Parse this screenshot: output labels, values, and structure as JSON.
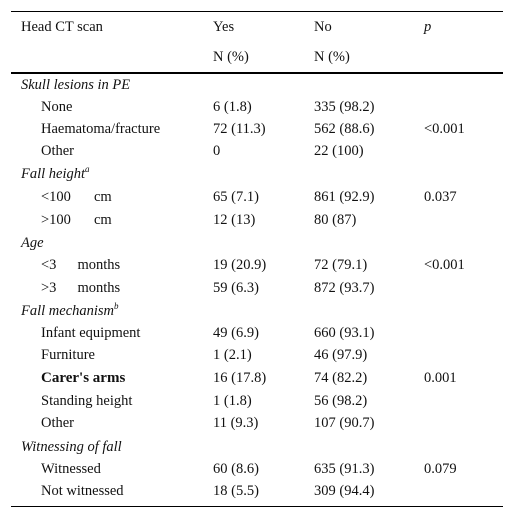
{
  "header": {
    "col0": "Head CT scan",
    "col1": "Yes",
    "col2": "No",
    "col3": "p",
    "col1_sub": "N (%)",
    "col2_sub": "N (%)"
  },
  "sections": [
    {
      "title": "Skull lesions in PE",
      "sup": ""
    },
    {
      "title": "Fall height",
      "sup": "a"
    },
    {
      "title": "Age",
      "sup": ""
    },
    {
      "title": "Fall mechanism",
      "sup": "b"
    },
    {
      "title": "Witnessing of fall",
      "sup": ""
    }
  ],
  "rows": [
    {
      "label": "None",
      "unit": "",
      "yes": "6 (1.8)",
      "no": "335 (98.2)",
      "p": ""
    },
    {
      "label": "Haematoma/fracture",
      "unit": "",
      "yes": "72 (11.3)",
      "no": "562 (88.6)",
      "p": "<0.001"
    },
    {
      "label": "Other",
      "unit": "",
      "yes": "0",
      "no": "22 (100)",
      "p": ""
    },
    {
      "label": "<100",
      "unit": "cm",
      "yes": "65 (7.1)",
      "no": "861 (92.9)",
      "p": "0.037"
    },
    {
      "label": ">100",
      "unit": "cm",
      "yes": "12 (13)",
      "no": "80 (87)",
      "p": ""
    },
    {
      "label": "<3",
      "unit": "months",
      "yes": "19 (20.9)",
      "no": "72 (79.1)",
      "p": "<0.001"
    },
    {
      "label": ">3",
      "unit": "months",
      "yes": "59 (6.3)",
      "no": "872 (93.7)",
      "p": ""
    },
    {
      "label": "Infant equipment",
      "unit": "",
      "yes": "49 (6.9)",
      "no": "660 (93.1)",
      "p": ""
    },
    {
      "label": "Furniture",
      "unit": "",
      "yes": "1 (2.1)",
      "no": "46 (97.9)",
      "p": ""
    },
    {
      "label": "Carer's arms",
      "unit": "",
      "yes": "16 (17.8)",
      "no": "74 (82.2)",
      "p": "0.001"
    },
    {
      "label": "Standing height",
      "unit": "",
      "yes": "1 (1.8)",
      "no": "56 (98.2)",
      "p": ""
    },
    {
      "label": "Other",
      "unit": "",
      "yes": "11 (9.3)",
      "no": "107 (90.7)",
      "p": ""
    },
    {
      "label": "Witnessed",
      "unit": "",
      "yes": "60 (8.6)",
      "no": "635 (91.3)",
      "p": "0.079"
    },
    {
      "label": "Not witnessed",
      "unit": "",
      "yes": "18 (5.5)",
      "no": "309 (94.4)",
      "p": ""
    }
  ]
}
